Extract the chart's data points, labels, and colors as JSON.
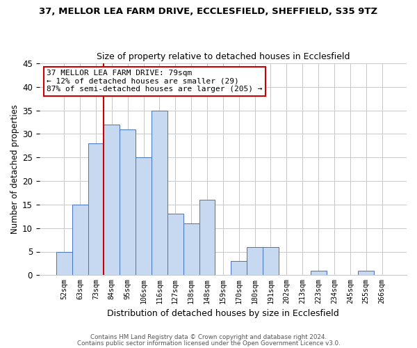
{
  "title": "37, MELLOR LEA FARM DRIVE, ECCLESFIELD, SHEFFIELD, S35 9TZ",
  "subtitle": "Size of property relative to detached houses in Ecclesfield",
  "xlabel": "Distribution of detached houses by size in Ecclesfield",
  "ylabel": "Number of detached properties",
  "categories": [
    "52sqm",
    "63sqm",
    "73sqm",
    "84sqm",
    "95sqm",
    "106sqm",
    "116sqm",
    "127sqm",
    "138sqm",
    "148sqm",
    "159sqm",
    "170sqm",
    "180sqm",
    "191sqm",
    "202sqm",
    "213sqm",
    "223sqm",
    "234sqm",
    "245sqm",
    "255sqm",
    "266sqm"
  ],
  "values": [
    5,
    15,
    28,
    32,
    31,
    25,
    35,
    13,
    11,
    16,
    0,
    3,
    6,
    6,
    0,
    0,
    1,
    0,
    0,
    1,
    0
  ],
  "bar_color": "#c6d9f1",
  "bar_edge_color": "#4472c4",
  "vline_color": "#cc0000",
  "annotation_line1": "37 MELLOR LEA FARM DRIVE: 79sqm",
  "annotation_line2": "← 12% of detached houses are smaller (29)",
  "annotation_line3": "87% of semi-detached houses are larger (205) →",
  "annotation_box_color": "#ffffff",
  "annotation_border_color": "#cc0000",
  "ylim": [
    0,
    45
  ],
  "yticks": [
    0,
    5,
    10,
    15,
    20,
    25,
    30,
    35,
    40,
    45
  ],
  "footer1": "Contains HM Land Registry data © Crown copyright and database right 2024.",
  "footer2": "Contains public sector information licensed under the Open Government Licence v3.0.",
  "background_color": "#ffffff",
  "grid_color": "#c8c8c8",
  "vline_bar_index": 2.5
}
